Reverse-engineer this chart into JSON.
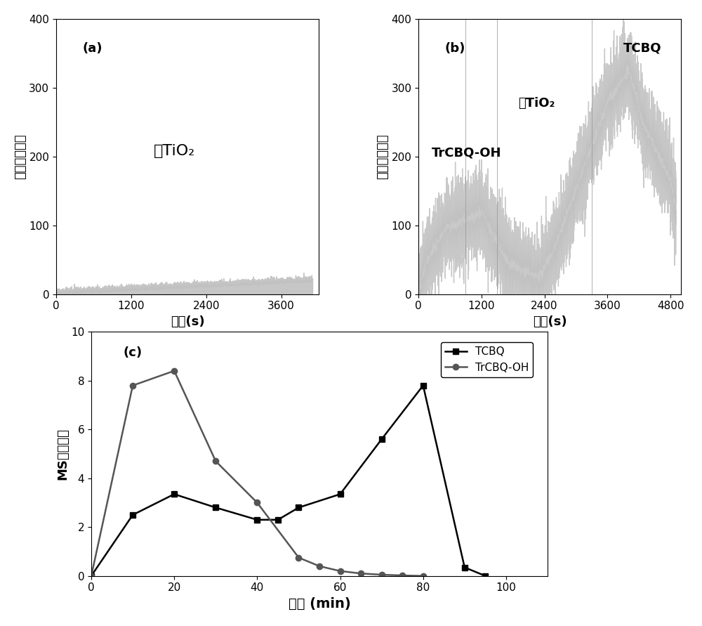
{
  "panel_a": {
    "label": "(a)",
    "annotation": "无TiO₂",
    "xlabel": "时间(s)",
    "ylabel": "化学发光强度",
    "xlim": [
      0,
      4200
    ],
    "ylim": [
      0,
      400
    ],
    "xticks": [
      0,
      1200,
      2400,
      3600
    ],
    "yticks": [
      0,
      100,
      200,
      300,
      400
    ],
    "noise_x_end": 4100,
    "noise_mean": 5,
    "noise_max": 25
  },
  "panel_b": {
    "label": "(b)",
    "annotation1": "TrCBQ-OH",
    "annotation2": "有TiO₂",
    "annotation3": "TCBQ",
    "xlabel": "时间(s)",
    "ylabel": "化学发光强度",
    "xlim": [
      0,
      5000
    ],
    "ylim": [
      0,
      400
    ],
    "xticks": [
      0,
      1200,
      2400,
      3600,
      4800
    ],
    "yticks": [
      0,
      100,
      200,
      300,
      400
    ],
    "vlines": [
      900,
      1500,
      3300
    ],
    "signal_color": "#bbbbbb"
  },
  "panel_c": {
    "label": "(c)",
    "xlabel": "时间 (min)",
    "ylabel": "MS信号强度",
    "xlim": [
      0,
      110
    ],
    "ylim": [
      0,
      10
    ],
    "xticks": [
      0,
      20,
      40,
      60,
      80,
      100
    ],
    "yticks": [
      0,
      2,
      4,
      6,
      8,
      10
    ],
    "tcbq_x": [
      0,
      10,
      20,
      30,
      40,
      45,
      50,
      60,
      70,
      80,
      90,
      95
    ],
    "tcbq_y": [
      0,
      2.5,
      3.35,
      2.8,
      2.3,
      2.3,
      2.8,
      3.35,
      5.6,
      7.8,
      0.35,
      0.0
    ],
    "trcbq_x": [
      0,
      10,
      20,
      30,
      40,
      50,
      55,
      60,
      65,
      70,
      75,
      80
    ],
    "trcbq_y": [
      0,
      7.8,
      8.4,
      4.7,
      3.0,
      0.75,
      0.4,
      0.2,
      0.1,
      0.05,
      0.02,
      0.0
    ],
    "tcbq_color": "#000000",
    "trcbq_color": "#555555",
    "tcbq_label": "TCBQ",
    "trcbq_label": "TrCBQ-OH",
    "legend_marker_tcbq": "s",
    "legend_marker_trcbq": "o"
  },
  "background_color": "#ffffff",
  "axis_color": "#000000",
  "font_size_label": 13,
  "font_size_tick": 11,
  "font_size_annotation": 14
}
